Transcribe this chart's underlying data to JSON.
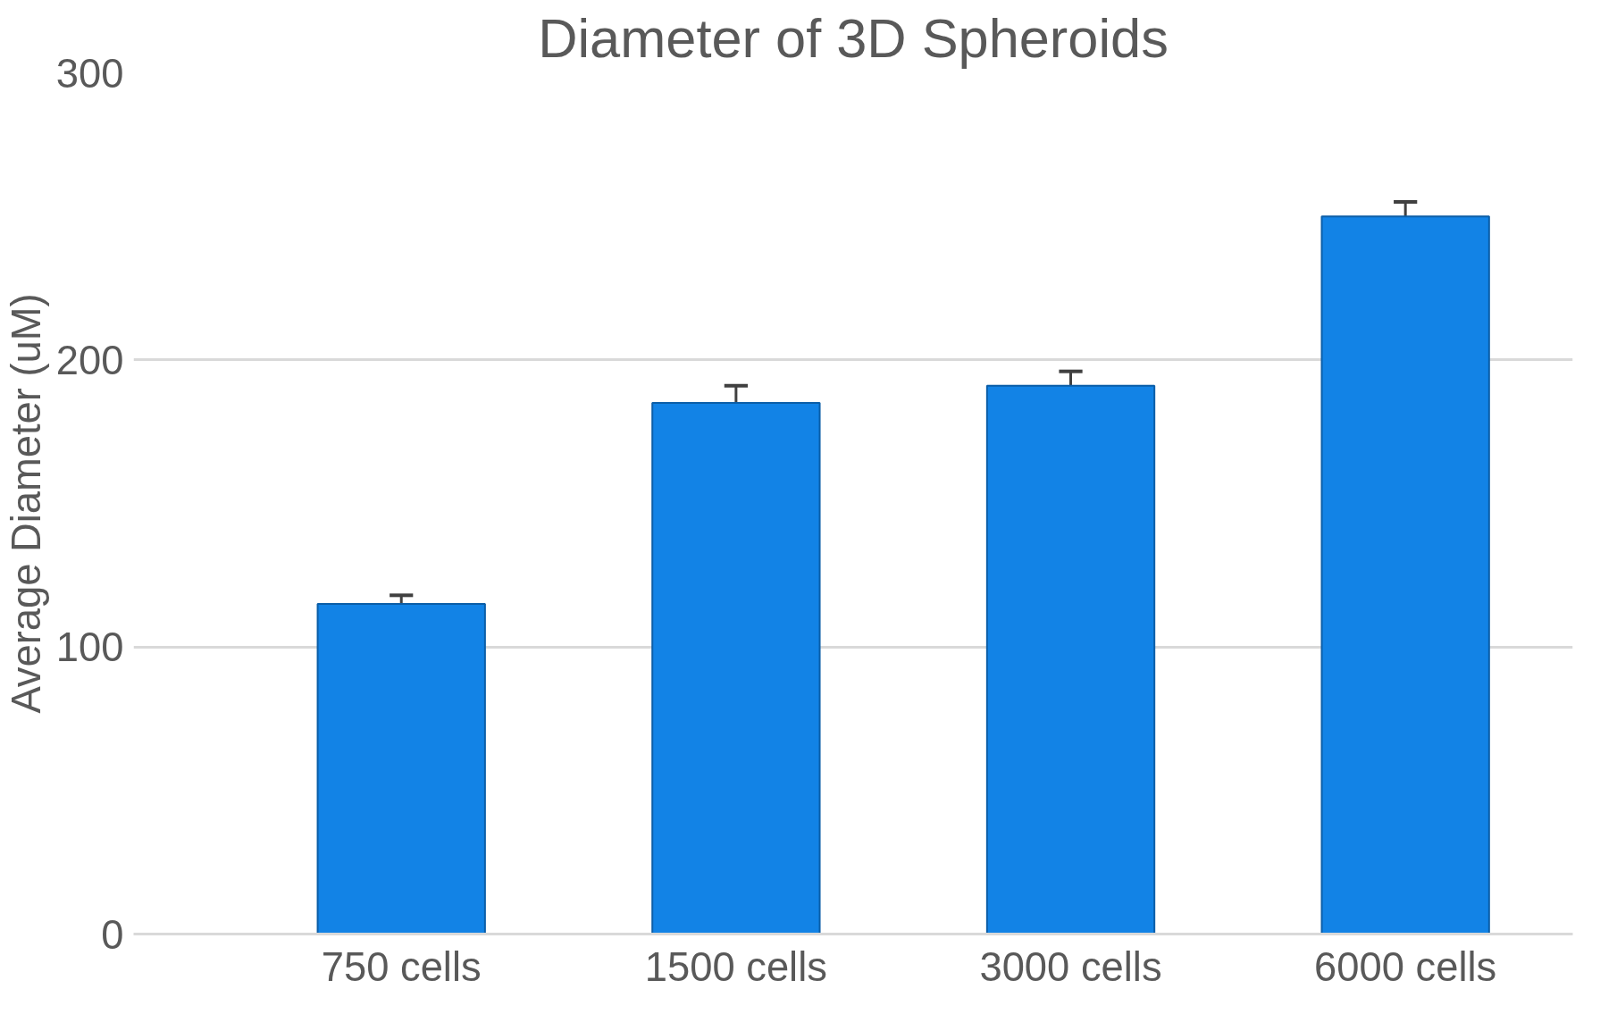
{
  "chart_data": {
    "type": "bar",
    "title": "Diameter of 3D Spheroids",
    "ylabel": "Average Diameter (uM)",
    "categories": [
      "750 cells",
      "1500 cells",
      "3000 cells",
      "6000 cells"
    ],
    "values": [
      115,
      185,
      191,
      250
    ],
    "errors": [
      [
        115,
        118
      ],
      [
        185,
        191
      ],
      [
        191,
        196
      ],
      [
        250,
        255
      ]
    ],
    "color": "#1283e6",
    "ylim": [
      0,
      300
    ],
    "yticks": [
      0,
      100,
      200,
      300
    ],
    "grid": "y"
  }
}
